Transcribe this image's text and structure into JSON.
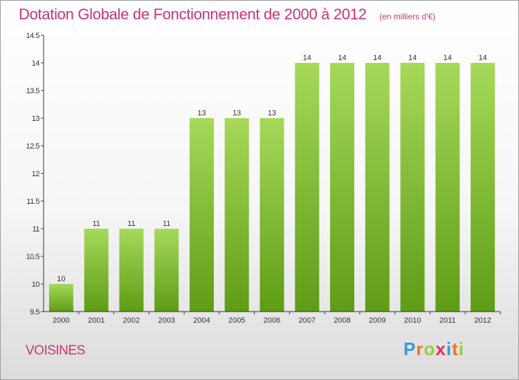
{
  "header": {
    "title": "Dotation Globale de Fonctionnement de 2000 à 2012",
    "unit": "(en milliers d'€)"
  },
  "footer": {
    "commune": "VOISINES",
    "logo": {
      "letters": [
        "P",
        "r",
        "o",
        "x",
        "i",
        "t",
        "i"
      ],
      "colors": [
        "#3399dd",
        "#ee7722",
        "#99cc33",
        "#dd3355",
        "#3399dd",
        "#ee7722",
        "#99cc33"
      ]
    }
  },
  "chart_data": {
    "type": "bar",
    "title": "Dotation Globale de Fonctionnement de 2000 à 2012",
    "categories": [
      "2000",
      "2001",
      "2002",
      "2003",
      "2004",
      "2005",
      "2006",
      "2007",
      "2008",
      "2009",
      "2010",
      "2011",
      "2012"
    ],
    "values": [
      10,
      11,
      11,
      11,
      13,
      13,
      13,
      14,
      14,
      14,
      14,
      14,
      14
    ],
    "ylim": [
      9.5,
      14.5
    ],
    "yticks": [
      9.5,
      10,
      10.5,
      11,
      11.5,
      12,
      12.5,
      13,
      13.5,
      14,
      14.5
    ],
    "ytick_labels": [
      "9.5",
      "10",
      "10.5",
      "11",
      "11.5",
      "12",
      "12.5",
      "13",
      "13.5",
      "14",
      "14.5"
    ],
    "grid": false,
    "colors": {
      "bar_top": "#a6d95a",
      "bar_bottom": "#5f9c16",
      "axis": "#333333",
      "label": "#333333"
    }
  }
}
